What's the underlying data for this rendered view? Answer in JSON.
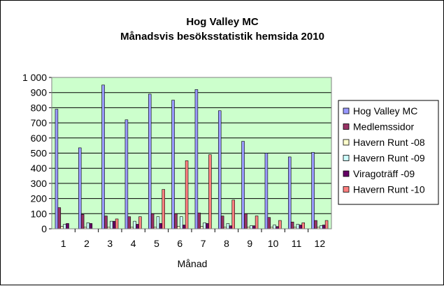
{
  "chart_data": {
    "type": "bar",
    "title": "Hog Valley MC",
    "subtitle": "Månadsvis besöksstatistik hemsida 2010",
    "xlabel": "Månad",
    "ylabel": "",
    "ylim": [
      0,
      1000
    ],
    "yticks": [
      "0",
      "100",
      "200",
      "300",
      "400",
      "500",
      "600",
      "700",
      "800",
      "900",
      "1 000"
    ],
    "ytick_values": [
      0,
      100,
      200,
      300,
      400,
      500,
      600,
      700,
      800,
      900,
      1000
    ],
    "categories": [
      "1",
      "2",
      "3",
      "4",
      "5",
      "6",
      "7",
      "8",
      "9",
      "10",
      "11",
      "12"
    ],
    "grid": "horizontal",
    "legend_position": "right",
    "plot_background": "#ccffcc",
    "series": [
      {
        "name": "Hog Valley MC",
        "color": "#9999ff",
        "values": [
          790,
          535,
          950,
          720,
          890,
          850,
          920,
          780,
          578,
          500,
          475,
          505
        ]
      },
      {
        "name": "Medlemssidor",
        "color": "#993366",
        "values": [
          140,
          95,
          85,
          80,
          100,
          100,
          105,
          85,
          100,
          75,
          45,
          55
        ]
      },
      {
        "name": "Havern Runt -08",
        "color": "#ffffcc",
        "values": [
          15,
          10,
          10,
          10,
          10,
          15,
          15,
          10,
          10,
          10,
          10,
          10
        ]
      },
      {
        "name": "Havern Runt -09",
        "color": "#ccffff",
        "values": [
          30,
          40,
          50,
          50,
          80,
          80,
          40,
          35,
          20,
          25,
          30,
          20
        ]
      },
      {
        "name": "Viragoträff -09",
        "color": "#660066",
        "values": [
          35,
          35,
          50,
          30,
          35,
          25,
          35,
          20,
          20,
          15,
          25,
          25
        ]
      },
      {
        "name": "Havern Runt -10",
        "color": "#ff8080",
        "values": [
          0,
          0,
          65,
          80,
          260,
          450,
          490,
          190,
          85,
          55,
          40,
          55
        ]
      }
    ]
  }
}
